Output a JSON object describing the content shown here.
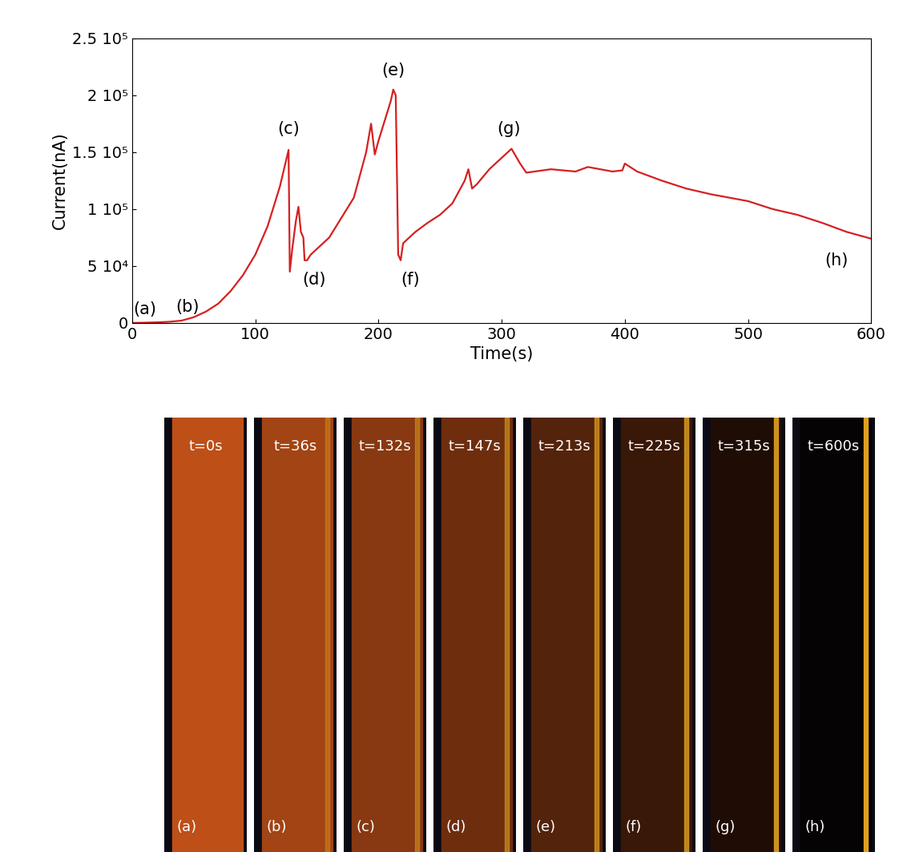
{
  "chart_data": {
    "type": "line",
    "x_label": "Time(s)",
    "y_label": "Current(nA)",
    "color": "#d62020",
    "x": [
      0,
      10,
      20,
      30,
      40,
      50,
      60,
      70,
      80,
      90,
      100,
      110,
      120,
      127,
      128,
      130,
      133,
      135,
      137,
      139,
      140,
      142,
      145,
      160,
      180,
      190,
      194,
      197,
      200,
      210,
      212,
      214,
      216,
      218,
      220,
      230,
      240,
      250,
      260,
      270,
      273,
      276,
      280,
      290,
      300,
      308,
      315,
      320,
      340,
      360,
      370,
      390,
      398,
      400,
      410,
      430,
      450,
      470,
      500,
      520,
      540,
      560,
      580,
      600
    ],
    "values": [
      0,
      200,
      500,
      1000,
      2000,
      5000,
      10000,
      17000,
      28000,
      42000,
      60000,
      85000,
      120000,
      152000,
      45000,
      65000,
      90000,
      102000,
      80000,
      75000,
      55000,
      55000,
      60000,
      75000,
      110000,
      150000,
      175000,
      148000,
      160000,
      195000,
      205000,
      200000,
      60000,
      55000,
      70000,
      80000,
      88000,
      95000,
      105000,
      125000,
      135000,
      118000,
      122000,
      135000,
      145000,
      153000,
      140000,
      132000,
      135000,
      133000,
      137000,
      133000,
      134000,
      140000,
      133000,
      125000,
      118000,
      113000,
      107000,
      100000,
      95000,
      88000,
      80000,
      74000
    ],
    "xlim": [
      0,
      600
    ],
    "xticks": [
      0,
      100,
      200,
      300,
      400,
      500,
      600
    ],
    "ylim": [
      0,
      250000
    ],
    "yticks": [
      0,
      {
        "value": 50000,
        "label": "5 10⁴"
      },
      {
        "value": 100000,
        "label": "1 10⁵"
      },
      {
        "value": 150000,
        "label": "1.5 10⁵"
      },
      {
        "value": 200000,
        "label": "2 10⁵"
      },
      {
        "value": 250000,
        "label": "2.5 10⁵"
      }
    ],
    "annotations": [
      {
        "text": "(a)",
        "x": 10,
        "y": 12000
      },
      {
        "text": "(b)",
        "x": 45,
        "y": 14000
      },
      {
        "text": "(c)",
        "x": 127,
        "y": 170000
      },
      {
        "text": "(d)",
        "x": 148,
        "y": 38000
      },
      {
        "text": "(e)",
        "x": 212,
        "y": 222000
      },
      {
        "text": "(f)",
        "x": 226,
        "y": 38000
      },
      {
        "text": "(g)",
        "x": 306,
        "y": 170000
      },
      {
        "text": "(h)",
        "x": 572,
        "y": 55000
      }
    ]
  },
  "image_panels": [
    {
      "time": "t=0s",
      "label": "(a)"
    },
    {
      "time": "t=36s",
      "label": "(b)"
    },
    {
      "time": "t=132s",
      "label": "(c)"
    },
    {
      "time": "t=147s",
      "label": "(d)"
    },
    {
      "time": "t=213s",
      "label": "(e)"
    },
    {
      "time": "t=225s",
      "label": "(f)"
    },
    {
      "time": "t=315s",
      "label": "(g)"
    },
    {
      "time": "t=600s",
      "label": "(h)"
    }
  ]
}
